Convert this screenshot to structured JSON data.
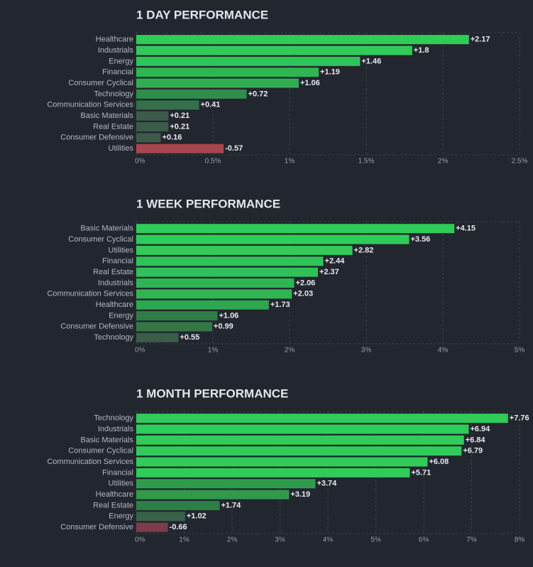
{
  "chart_data": [
    {
      "type": "bar",
      "orientation": "horizontal",
      "title": "1 DAY PERFORMANCE",
      "categories": [
        "Healthcare",
        "Industrials",
        "Energy",
        "Financial",
        "Consumer Cyclical",
        "Technology",
        "Communication Services",
        "Basic Materials",
        "Real Estate",
        "Consumer Defensive",
        "Utilities"
      ],
      "values": [
        2.17,
        1.8,
        1.46,
        1.19,
        1.06,
        0.72,
        0.41,
        0.21,
        0.21,
        0.16,
        -0.57
      ],
      "value_labels": [
        "+2.17",
        "+1.8",
        "+1.46",
        "+1.19",
        "+1.06",
        "+0.72",
        "+0.41",
        "+0.21",
        "+0.21",
        "+0.16",
        "-0.57"
      ],
      "colors": [
        "#30cc5a",
        "#30cc5a",
        "#30c458",
        "#2fb551",
        "#2fad50",
        "#2f8e49",
        "#35704a",
        "#3c5c4a",
        "#3c5c4a",
        "#3d594a",
        "#a8464f"
      ],
      "xlim": [
        0,
        2.5
      ],
      "xticks": [
        {
          "value": 0,
          "label": "0%"
        },
        {
          "value": 0.5,
          "label": "0.5%"
        },
        {
          "value": 1,
          "label": "1%"
        },
        {
          "value": 1.5,
          "label": "1.5%"
        },
        {
          "value": 2,
          "label": "2%"
        },
        {
          "value": 2.5,
          "label": "2.5%"
        }
      ],
      "grid": true
    },
    {
      "type": "bar",
      "orientation": "horizontal",
      "title": "1 WEEK PERFORMANCE",
      "categories": [
        "Basic Materials",
        "Consumer Cyclical",
        "Utilities",
        "Financial",
        "Real Estate",
        "Industrials",
        "Communication Services",
        "Healthcare",
        "Energy",
        "Consumer Defensive",
        "Technology"
      ],
      "values": [
        4.15,
        3.56,
        2.82,
        2.44,
        2.37,
        2.06,
        2.03,
        1.73,
        1.06,
        0.99,
        0.55
      ],
      "value_labels": [
        "+4.15",
        "+3.56",
        "+2.82",
        "+2.44",
        "+2.37",
        "+2.06",
        "+2.03",
        "+1.73",
        "+1.06",
        "+0.99",
        "+0.55"
      ],
      "colors": [
        "#30cc5a",
        "#30cc5a",
        "#30cc5a",
        "#30c458",
        "#30c257",
        "#2fb652",
        "#2fb552",
        "#2fa74f",
        "#2f7c46",
        "#337745",
        "#3c5c4a"
      ],
      "xlim": [
        0,
        5
      ],
      "xticks": [
        {
          "value": 0,
          "label": "0%"
        },
        {
          "value": 1,
          "label": "1%"
        },
        {
          "value": 2,
          "label": "2%"
        },
        {
          "value": 3,
          "label": "3%"
        },
        {
          "value": 4,
          "label": "4%"
        },
        {
          "value": 5,
          "label": "5%"
        }
      ],
      "grid": true
    },
    {
      "type": "bar",
      "orientation": "horizontal",
      "title": "1 MONTH PERFORMANCE",
      "categories": [
        "Technology",
        "Industrials",
        "Basic Materials",
        "Consumer Cyclical",
        "Communication Services",
        "Financial",
        "Utilities",
        "Healthcare",
        "Real Estate",
        "Energy",
        "Consumer Defensive"
      ],
      "values": [
        7.76,
        6.94,
        6.84,
        6.79,
        6.08,
        5.71,
        3.74,
        3.19,
        1.74,
        1.02,
        -0.66
      ],
      "value_labels": [
        "+7.76",
        "+6.94",
        "+6.84",
        "+6.79",
        "+6.08",
        "+5.71",
        "+3.74",
        "+3.19",
        "+1.74",
        "+1.02",
        "-0.66"
      ],
      "colors": [
        "#30cc5a",
        "#30cc5a",
        "#30cc5a",
        "#30cc5a",
        "#30cc5a",
        "#30cc5a",
        "#2f9c4c",
        "#2f9a4c",
        "#2f7e46",
        "#3a6248",
        "#7a3d4c"
      ],
      "xlim": [
        0,
        8
      ],
      "xticks": [
        {
          "value": 0,
          "label": "0%"
        },
        {
          "value": 1,
          "label": "1%"
        },
        {
          "value": 2,
          "label": "2%"
        },
        {
          "value": 3,
          "label": "3%"
        },
        {
          "value": 4,
          "label": "4%"
        },
        {
          "value": 5,
          "label": "5%"
        },
        {
          "value": 6,
          "label": "6%"
        },
        {
          "value": 7,
          "label": "7%"
        },
        {
          "value": 8,
          "label": "8%"
        }
      ],
      "grid": true
    }
  ]
}
